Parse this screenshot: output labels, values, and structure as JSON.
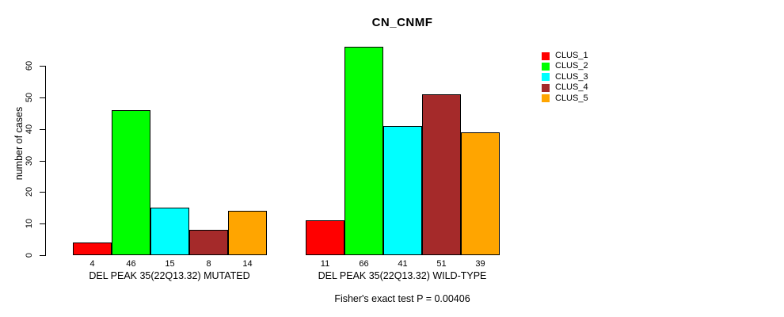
{
  "chart_data": {
    "type": "bar",
    "title": "CN_CNMF",
    "ylabel": "number of cases",
    "xlabel": "",
    "ylim": [
      0,
      60
    ],
    "yticks": [
      0,
      10,
      20,
      30,
      40,
      50,
      60
    ],
    "grid": false,
    "legend_position": "right",
    "groups": [
      {
        "label": "DEL PEAK 35(22Q13.32) MUTATED",
        "categories": [
          "CLUS_1",
          "CLUS_2",
          "CLUS_3",
          "CLUS_4",
          "CLUS_5"
        ],
        "values": [
          4,
          46,
          15,
          8,
          14
        ]
      },
      {
        "label": "DEL PEAK 35(22Q13.32) WILD-TYPE",
        "categories": [
          "CLUS_1",
          "CLUS_2",
          "CLUS_3",
          "CLUS_4",
          "CLUS_5"
        ],
        "values": [
          11,
          66,
          41,
          51,
          39
        ]
      }
    ],
    "series_colors": [
      "#FF0000",
      "#00FF00",
      "#00FFFF",
      "#A52A2A",
      "#FFA500"
    ],
    "legend": [
      {
        "label": "CLUS_1",
        "color": "#FF0000"
      },
      {
        "label": "CLUS_2",
        "color": "#00FF00"
      },
      {
        "label": "CLUS_3",
        "color": "#00FFFF"
      },
      {
        "label": "CLUS_4",
        "color": "#A52A2A"
      },
      {
        "label": "CLUS_5",
        "color": "#FFA500"
      }
    ],
    "annotation": "Fisher's exact test P = 0.00406",
    "bar_border_color": "#000000",
    "background_color": "#FFFFFF"
  }
}
